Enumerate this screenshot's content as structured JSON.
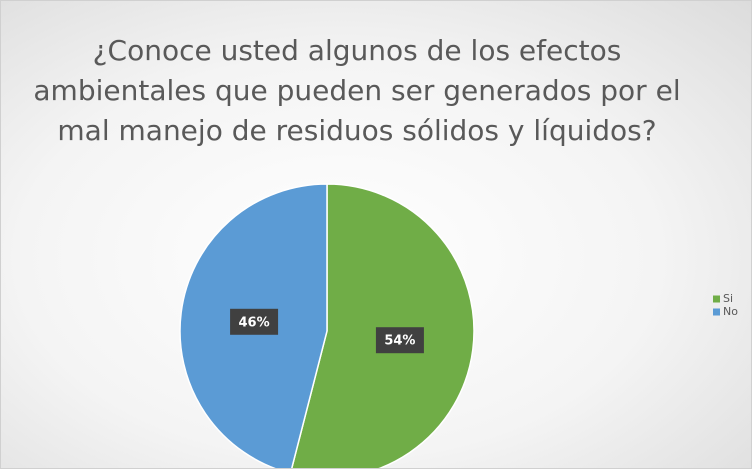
{
  "chart_data": {
    "type": "pie",
    "title": "¿Conoce usted algunos de los efectos ambientales que pueden ser generados por el mal manejo de residuos sólidos y líquidos?",
    "categories": [
      "Si",
      "No"
    ],
    "values": [
      54,
      46
    ],
    "value_labels": [
      "54%",
      "46%"
    ],
    "colors": [
      "#70ad47",
      "#5b9bd5"
    ],
    "legend": "right"
  }
}
